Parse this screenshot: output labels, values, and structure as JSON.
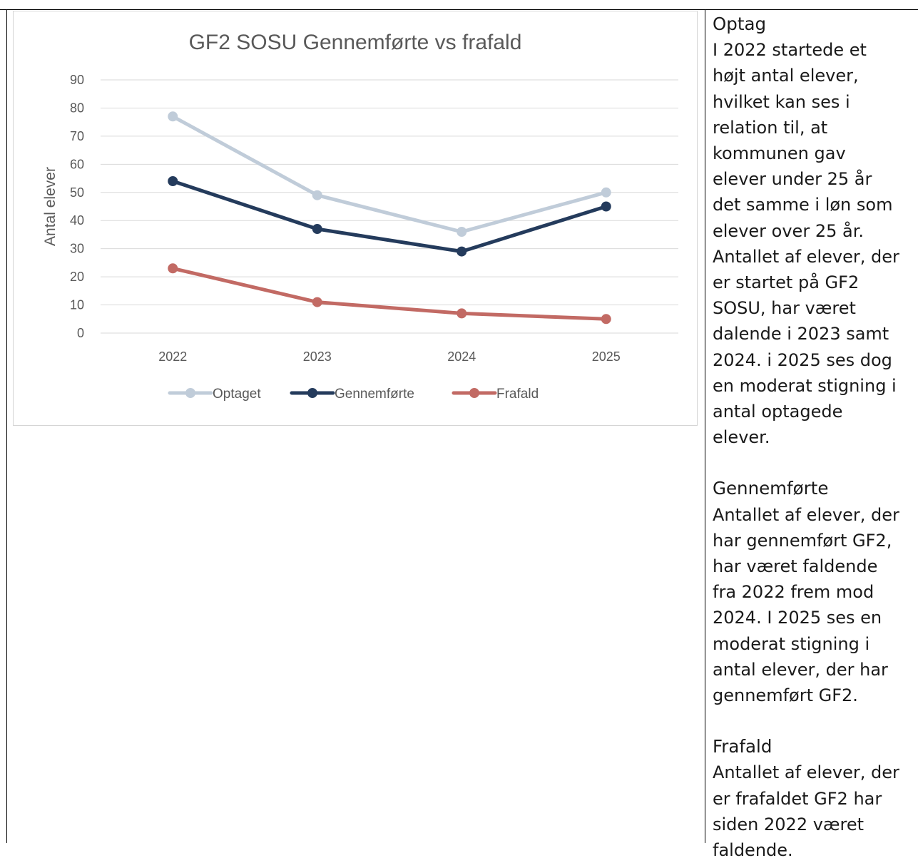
{
  "chart_data": {
    "type": "line",
    "title": "GF2 SOSU Gennemførte vs frafald",
    "xlabel": "",
    "ylabel": "Antal elever",
    "categories": [
      "2022",
      "2023",
      "2024",
      "2025"
    ],
    "ylim": [
      0,
      90
    ],
    "yticks": [
      0,
      10,
      20,
      30,
      40,
      50,
      60,
      70,
      80,
      90
    ],
    "grid": true,
    "legend_position": "bottom",
    "series": [
      {
        "name": "Optaget",
        "values": [
          77,
          49,
          36,
          50
        ],
        "color": "#c0ccd9"
      },
      {
        "name": "Gennemførte",
        "values": [
          54,
          37,
          29,
          45
        ],
        "color": "#243b5c"
      },
      {
        "name": "Frafald",
        "values": [
          23,
          11,
          7,
          5
        ],
        "color": "#c26a64"
      }
    ]
  },
  "sidebar": {
    "sections": [
      {
        "heading": "Optag",
        "body": "I 2022 startede et\nhøjt antal elever,\nhvilket kan ses i\nrelation til, at\nkommunen gav\nelever under 25 år\ndet samme i løn som\nelever over 25 år.\nAntallet af elever, der\ner startet på GF2\nSOSU, har været\ndalende i 2023 samt\n2024. i 2025 ses dog\nen moderat stigning i\nantal optagede\nelever."
      },
      {
        "heading": "Gennemførte",
        "body": "Antallet af elever, der\nhar gennemført GF2,\nhar været faldende\nfra 2022 frem mod\n2024. I 2025 ses en\nmoderat stigning i\nantal elever, der har\ngennemført GF2."
      },
      {
        "heading": "Frafald",
        "body": "Antallet af elever, der\ner frafaldet GF2 har\nsiden 2022 været\nfaldende."
      }
    ]
  }
}
